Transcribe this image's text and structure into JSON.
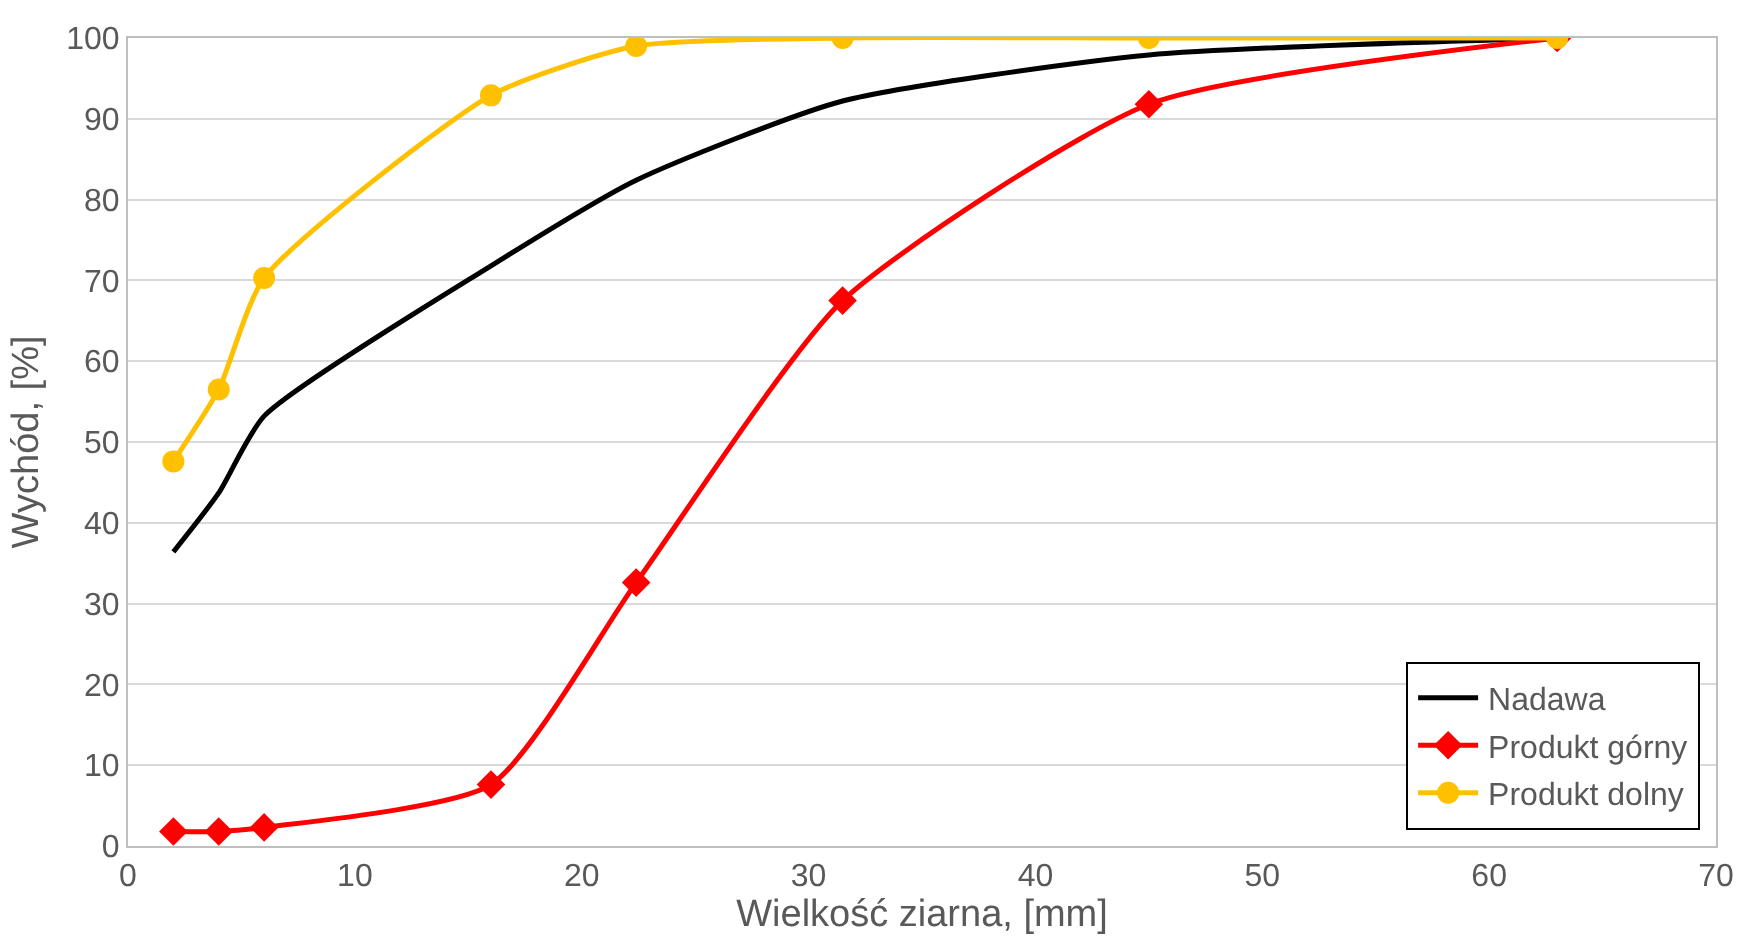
{
  "chart_data": {
    "type": "line",
    "xlabel": "Wielkość ziarna, [mm]",
    "ylabel": "Wychód, [%]",
    "x": [
      2,
      4,
      6,
      16,
      22.4,
      31.5,
      45,
      63
    ],
    "series": [
      {
        "name": "Nadawa",
        "color": "#000000",
        "marker": "none",
        "values": [
          36.4,
          43.7,
          53.2,
          71.8,
          82.4,
          92.2,
          97.9,
          100
        ]
      },
      {
        "name": "Produkt górny",
        "color": "#ff0000",
        "marker": "diamond",
        "values": [
          1.8,
          1.8,
          2.3,
          7.6,
          32.6,
          67.5,
          91.8,
          100
        ]
      },
      {
        "name": "Produkt dolny",
        "color": "#ffc000",
        "marker": "circle",
        "values": [
          47.6,
          56.5,
          70.3,
          92.9,
          99,
          100,
          100,
          100
        ]
      }
    ],
    "xlim": [
      0,
      70
    ],
    "xticks": [
      0,
      10,
      20,
      30,
      40,
      50,
      60,
      70
    ],
    "ylim": [
      0,
      100
    ],
    "yticks": [
      0,
      10,
      20,
      30,
      40,
      50,
      60,
      70,
      80,
      90,
      100
    ],
    "grid": "y",
    "legend": "bottom right"
  }
}
